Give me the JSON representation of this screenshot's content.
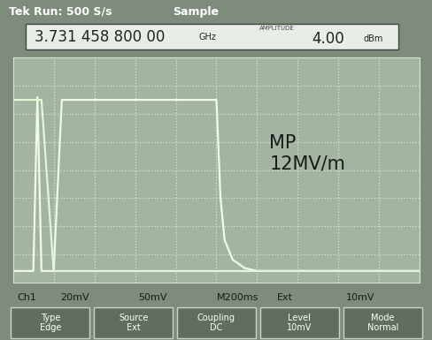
{
  "chart_data": {
    "type": "line",
    "x": [
      0,
      0.5,
      0.6,
      0.7,
      1.0,
      1.2,
      5.0,
      5.1,
      5.2,
      5.4,
      5.7,
      6.0,
      7.0,
      10.0
    ],
    "series": [
      {
        "color": "#f0fbe8",
        "values": [
          -3.6,
          -3.6,
          2.6,
          -3.6,
          -3.6,
          2.5,
          2.5,
          -1.0,
          -2.5,
          -3.2,
          -3.5,
          -3.6,
          -3.6,
          -3.6
        ]
      },
      {
        "color": "#e4f5d8",
        "values": [
          2.5,
          2.5,
          2.5,
          2.5,
          -3.6,
          -3.6,
          -3.6,
          -3.6,
          -3.6,
          -3.6,
          -3.6,
          -3.6,
          -3.6,
          -3.6
        ]
      }
    ],
    "xlim": [
      0,
      10
    ],
    "ylim": [
      -4,
      4
    ],
    "xticks": [
      0,
      1,
      2,
      3,
      4,
      5,
      6,
      7,
      8,
      9,
      10
    ],
    "yticks": [
      -4,
      -3,
      -2,
      -1,
      0,
      1,
      2,
      3,
      4
    ],
    "grid": true,
    "tick_labels": false,
    "annotations": {
      "header": [
        "Tek Run: 500 S/s",
        "Sample"
      ],
      "frequency": "3.731 458 800 00",
      "frequency_unit": "GHz",
      "amplitude_label": "AMPLITUDE",
      "amplitude": "4.00",
      "amplitude_unit": "dBm",
      "note": "MP\n12MV/m",
      "status": [
        "Ch1",
        "20mV",
        "50mV",
        "M200ms",
        "Ext",
        "10mV"
      ],
      "menu": [
        "Type\nEdge",
        "Source\nExt",
        "Coupling\nDC",
        "Level\n10mV",
        "Mode\nNormal"
      ]
    }
  }
}
